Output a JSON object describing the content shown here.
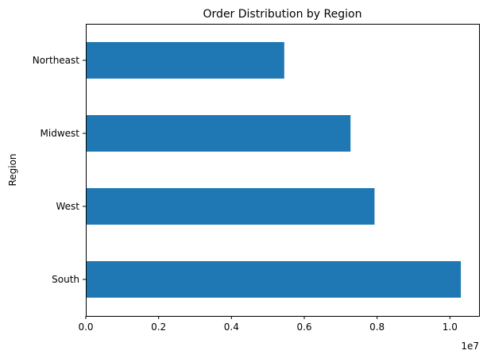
{
  "chart_data": {
    "type": "bar",
    "orientation": "horizontal",
    "title": "Order Distribution by Region",
    "ylabel": "Region",
    "xlabel": "",
    "categories": [
      "South",
      "West",
      "Midwest",
      "Northeast"
    ],
    "values": [
      10300000,
      7930000,
      7270000,
      5450000
    ],
    "xlim": [
      0,
      10800000
    ],
    "x_ticks": [
      0,
      2000000,
      4000000,
      6000000,
      8000000,
      10000000
    ],
    "x_tick_labels": [
      "0.0",
      "0.2",
      "0.4",
      "0.6",
      "0.8",
      "1.0"
    ],
    "x_offset_label": "1e7",
    "bar_color": "#1f77b4",
    "grid": false,
    "legend": false
  }
}
